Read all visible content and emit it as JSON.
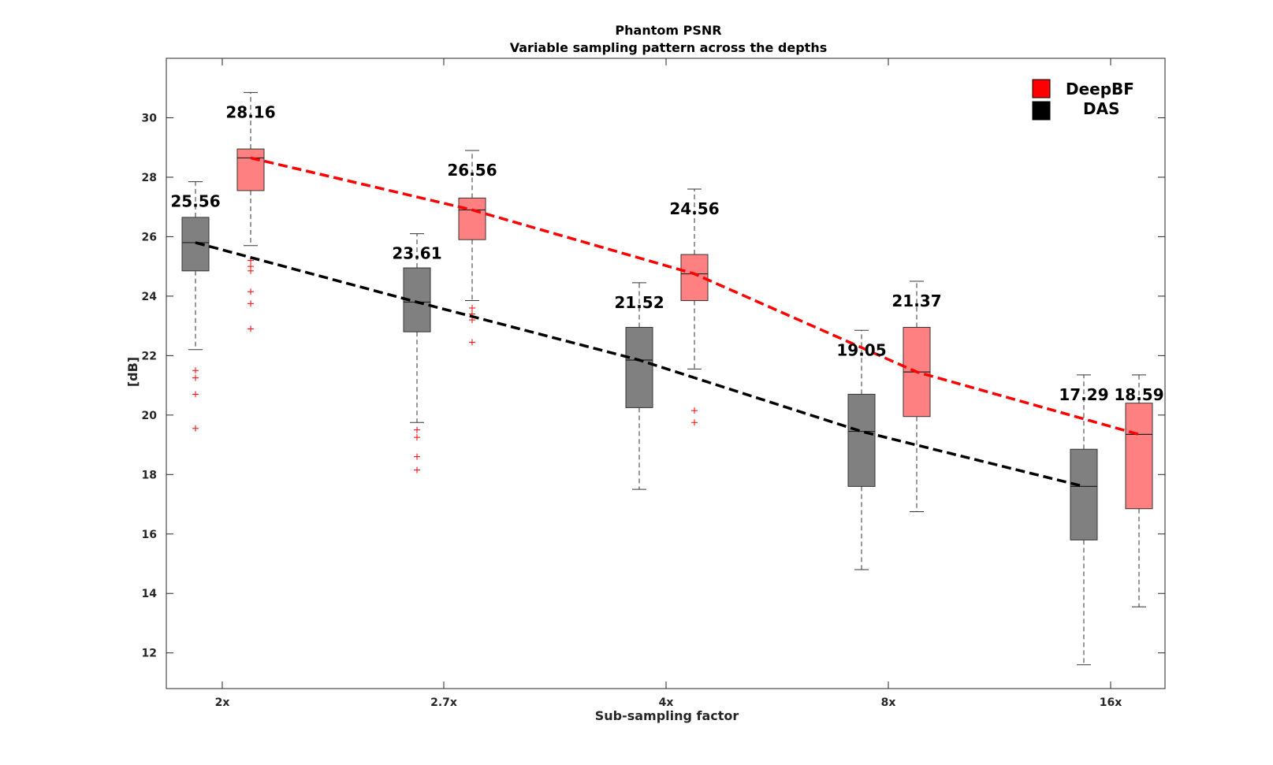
{
  "chart_data": {
    "type": "box",
    "title": "Phantom PSNR",
    "subtitle": "Variable sampling pattern across the depths",
    "xlabel": "Sub-sampling factor",
    "ylabel": "[dB]",
    "categories": [
      "2x",
      "2.7x",
      "4x",
      "8x",
      "16x"
    ],
    "ylim": [
      10.8,
      32.0
    ],
    "yticks": [
      12,
      14,
      16,
      18,
      20,
      22,
      24,
      26,
      28,
      30
    ],
    "grid": false,
    "legend_position": "top-right",
    "series": [
      {
        "name": "DAS",
        "color": "#808080",
        "line_color": "#000000",
        "boxes": [
          {
            "min": 22.2,
            "q1": 24.85,
            "median": 25.8,
            "q3": 26.65,
            "max": 27.85,
            "outliers": [
              21.5,
              21.25,
              20.7,
              19.55
            ]
          },
          {
            "min": 19.75,
            "q1": 22.8,
            "median": 23.8,
            "q3": 24.95,
            "max": 26.1,
            "outliers": [
              19.5,
              19.25,
              18.6,
              18.15
            ]
          },
          {
            "min": 17.5,
            "q1": 20.25,
            "median": 21.85,
            "q3": 22.95,
            "max": 24.45,
            "outliers": []
          },
          {
            "min": 14.8,
            "q1": 17.6,
            "median": 19.45,
            "q3": 20.7,
            "max": 22.85,
            "outliers": []
          },
          {
            "min": 11.6,
            "q1": 15.8,
            "median": 17.6,
            "q3": 18.85,
            "max": 21.35,
            "outliers": []
          }
        ],
        "mean_labels": [
          "25.56",
          "23.61",
          "21.52",
          "19.05",
          "17.29"
        ]
      },
      {
        "name": "DeepBF",
        "color": "#ff8080",
        "line_color": "#ff0000",
        "boxes": [
          {
            "min": 25.7,
            "q1": 27.55,
            "median": 28.65,
            "q3": 28.95,
            "max": 30.85,
            "outliers": [
              25.2,
              25.0,
              24.85,
              24.15,
              23.75,
              22.9
            ]
          },
          {
            "min": 23.85,
            "q1": 25.9,
            "median": 26.9,
            "q3": 27.3,
            "max": 28.9,
            "outliers": [
              23.6,
              23.4,
              23.2,
              22.45
            ]
          },
          {
            "min": 21.55,
            "q1": 23.85,
            "median": 24.75,
            "q3": 25.4,
            "max": 27.6,
            "outliers": [
              20.15,
              19.75
            ]
          },
          {
            "min": 16.75,
            "q1": 19.95,
            "median": 21.45,
            "q3": 22.95,
            "max": 24.5,
            "outliers": []
          },
          {
            "min": 13.55,
            "q1": 16.85,
            "median": 19.35,
            "q3": 20.4,
            "max": 21.35,
            "outliers": []
          }
        ],
        "mean_labels": [
          "28.16",
          "26.56",
          "24.56",
          "21.37",
          "18.59"
        ]
      }
    ]
  }
}
